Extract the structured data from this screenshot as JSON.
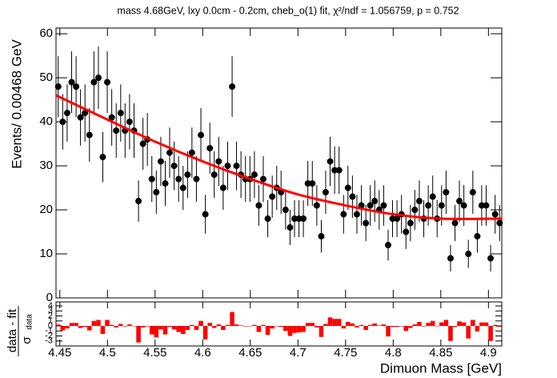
{
  "chart_data": [
    {
      "type": "scatter",
      "title": "mass 4.68GeV, lxy 0.0cm - 0.2cm, cheb_o(1) fit, χ²/ndf = 1.056759, p = 0.752",
      "y_label": "Events/ 0.00468 GeV",
      "xlim": [
        4.446,
        4.914
      ],
      "ylim": [
        0,
        61.3
      ],
      "yticks": [
        0,
        10,
        20,
        30,
        40,
        50,
        60
      ],
      "xticks": [
        4.45,
        4.5,
        4.55,
        4.6,
        4.65,
        4.7,
        4.75,
        4.8,
        4.85,
        4.9
      ],
      "color": "#000000",
      "x": [
        4.4483,
        4.453,
        4.4577,
        4.4624,
        4.4671,
        4.4717,
        4.4764,
        4.4811,
        4.4858,
        4.4905,
        4.4951,
        4.4998,
        4.5045,
        4.5092,
        4.5139,
        4.5185,
        4.5232,
        4.5279,
        4.5326,
        4.5373,
        4.5419,
        4.5466,
        4.5513,
        4.556,
        4.5607,
        4.5653,
        4.57,
        4.5747,
        4.5794,
        4.5841,
        4.5887,
        4.5934,
        4.5981,
        4.6028,
        4.6075,
        4.6121,
        4.6168,
        4.6215,
        4.6262,
        4.6309,
        4.6355,
        4.6402,
        4.6449,
        4.6496,
        4.6543,
        4.6589,
        4.6636,
        4.6683,
        4.673,
        4.6777,
        4.6823,
        4.687,
        4.6917,
        4.6964,
        4.7011,
        4.7057,
        4.7104,
        4.7151,
        4.7198,
        4.7245,
        4.7291,
        4.7338,
        4.7385,
        4.7432,
        4.7479,
        4.7525,
        4.7572,
        4.7619,
        4.7666,
        4.7713,
        4.7759,
        4.7806,
        4.7853,
        4.79,
        4.7947,
        4.7993,
        4.804,
        4.8087,
        4.8134,
        4.8181,
        4.8227,
        4.8274,
        4.8321,
        4.8368,
        4.8415,
        4.8461,
        4.8508,
        4.8555,
        4.8602,
        4.8649,
        4.8695,
        4.8742,
        4.8789,
        4.8836,
        4.8883,
        4.8929,
        4.8976,
        4.9023,
        4.907,
        4.9117
      ],
      "values": [
        48,
        40,
        42,
        49,
        48,
        41,
        42,
        37,
        49,
        50,
        32,
        49,
        41,
        38,
        42,
        38,
        40,
        38,
        22,
        35,
        36,
        27,
        24,
        31,
        26,
        33,
        30,
        27,
        25,
        28,
        33,
        27,
        37,
        19,
        34,
        28,
        31,
        25,
        30,
        48,
        30,
        28,
        27,
        27,
        28,
        21,
        27,
        18,
        23,
        25,
        24,
        20,
        16,
        18,
        18,
        18,
        26,
        26,
        21,
        14,
        24,
        31,
        29,
        29,
        19,
        25,
        23,
        19,
        21,
        17,
        21,
        22,
        20,
        21,
        12,
        18,
        18,
        19,
        15,
        17,
        20,
        22,
        18,
        21,
        23,
        18,
        21,
        24,
        9,
        17,
        22,
        21,
        10,
        24,
        14,
        21,
        21,
        9,
        19,
        17
      ],
      "errors": [
        6.9,
        6.3,
        6.5,
        7,
        6.9,
        6.4,
        6.5,
        6.1,
        7,
        7.1,
        5.7,
        7,
        6.4,
        6.2,
        6.5,
        6.2,
        6.3,
        6.2,
        4.7,
        5.9,
        6,
        5.2,
        4.9,
        5.6,
        5.1,
        5.7,
        5.5,
        5.2,
        5,
        5.3,
        5.7,
        5.2,
        6.1,
        4.4,
        5.8,
        5.3,
        5.6,
        5,
        5.5,
        6.9,
        5.5,
        5.3,
        5.2,
        5.2,
        5.3,
        4.6,
        5.2,
        4.2,
        4.8,
        5,
        4.9,
        4.5,
        4,
        4.2,
        4.2,
        4.2,
        5.1,
        5.1,
        4.6,
        3.7,
        4.9,
        5.6,
        5.4,
        5.4,
        4.4,
        5,
        4.8,
        4.4,
        4.6,
        4.1,
        4.6,
        4.7,
        4.5,
        4.6,
        3.5,
        4.2,
        4.2,
        4.4,
        3.9,
        4.1,
        4.5,
        4.7,
        4.2,
        4.6,
        4.8,
        4.2,
        4.6,
        4.9,
        3,
        4.1,
        4.7,
        4.6,
        3.2,
        4.9,
        3.7,
        4.6,
        4.6,
        3,
        4.4,
        4.1
      ],
      "fit": {
        "color": "#ff0000",
        "x": [
          4.446,
          4.5,
          4.55,
          4.6,
          4.65,
          4.7,
          4.75,
          4.8,
          4.85,
          4.914
        ],
        "values": [
          46,
          40.5,
          35.5,
          31,
          27,
          23.5,
          21,
          19,
          18,
          18
        ]
      }
    },
    {
      "type": "bar",
      "y_label": "data - fit",
      "y_label_sigma": "σ",
      "y_label_sub": "data",
      "x_label": "Dimuon Mass [GeV]",
      "xlim": [
        4.446,
        4.914
      ],
      "ylim": [
        -4,
        4.8
      ],
      "yticks": [
        -3,
        -2,
        -1,
        0,
        1,
        2,
        3,
        4
      ],
      "xticks": [
        4.45,
        4.5,
        4.55,
        4.6,
        4.65,
        4.7,
        4.75,
        4.8,
        4.85,
        4.9
      ],
      "color": "#ff0000",
      "values": [
        0.3,
        -0.9,
        -0.5,
        0.6,
        0.6,
        -0.4,
        -0.2,
        -0.9,
        1.0,
        1.2,
        -1.6,
        1.2,
        0.2,
        -0.3,
        0.4,
        -0.1,
        0.3,
        0.0,
        -3.3,
        -0.3,
        -0.1,
        -1.7,
        -2.3,
        -0.7,
        -1.7,
        -0.2,
        -0.7,
        -1.2,
        -1.6,
        -0.8,
        0.2,
        -0.8,
        1.0,
        -2.7,
        0.6,
        -0.4,
        0.3,
        -0.8,
        0.2,
        2.8,
        0.3,
        0.1,
        -0.1,
        0.0,
        0.2,
        -1.2,
        0.2,
        -1.8,
        -0.5,
        0.0,
        -0.2,
        -1.0,
        -2.0,
        -1.4,
        -1.3,
        -1.2,
        0.6,
        0.6,
        -0.3,
        -2.2,
        0.4,
        1.7,
        1.4,
        1.4,
        -0.5,
        0.8,
        0.5,
        -0.3,
        0.2,
        -0.8,
        0.2,
        0.5,
        0.1,
        0.3,
        -2.1,
        -0.2,
        -0.2,
        0.0,
        -1.0,
        -0.4,
        0.3,
        0.8,
        -0.1,
        0.6,
        1.0,
        0.0,
        0.7,
        1.2,
        -3.0,
        -0.2,
        0.9,
        0.7,
        -2.5,
        1.2,
        -1.1,
        0.7,
        0.7,
        -3.0,
        0.2,
        -0.2
      ]
    }
  ]
}
